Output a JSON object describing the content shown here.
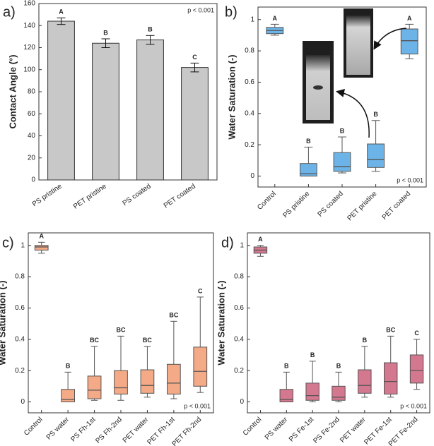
{
  "chart_data": [
    {
      "type": "bar",
      "panel_label": "a)",
      "y_label": "Contact Angle (°)",
      "annotation": "p < 0.001",
      "categories": [
        "PS pristine",
        "PET pristine",
        "PS coated",
        "PET coated"
      ],
      "values": [
        144,
        124,
        127,
        102
      ],
      "errors": [
        3,
        4,
        4,
        4
      ],
      "letters": [
        "A",
        "B",
        "B",
        "C"
      ],
      "color": "#c8c8c8",
      "ylim": [
        0,
        160
      ],
      "yticks": [
        0,
        20,
        40,
        60,
        80,
        100,
        120,
        140,
        160
      ]
    },
    {
      "type": "box",
      "panel_label": "b)",
      "y_label": "Water Saturation (-)",
      "annotation": "p < 0.001",
      "categories": [
        "Control",
        "PS pristine",
        "PS coated",
        "PET pristine",
        "PET coated"
      ],
      "min": [
        0.9,
        0.0,
        0.02,
        0.03,
        0.75
      ],
      "q1": [
        0.91,
        0.0,
        0.03,
        0.055,
        0.78
      ],
      "median": [
        0.93,
        0.015,
        0.06,
        0.105,
        0.865
      ],
      "q3": [
        0.95,
        0.08,
        0.15,
        0.205,
        0.94
      ],
      "max": [
        0.97,
        0.185,
        0.25,
        0.355,
        0.97
      ],
      "letters": [
        "A",
        "B",
        "B",
        "B",
        "A"
      ],
      "color": "#6cb4e8",
      "ylim": [
        -0.07,
        1.08
      ],
      "yticks": [
        0,
        0.2,
        0.4,
        0.6,
        0.8,
        1
      ]
    },
    {
      "type": "box",
      "panel_label": "c)",
      "y_label": "Water Saturation (-)",
      "annotation": "p < 0.001",
      "categories": [
        "Control",
        "PS water",
        "PS Fh-1st",
        "PS Fh-2nd",
        "PET water",
        "PET Fh-1st",
        "PET Fh-2nd"
      ],
      "min": [
        0.95,
        0.0,
        0.01,
        0.01,
        0.03,
        0.02,
        0.06
      ],
      "q1": [
        0.97,
        0.0,
        0.02,
        0.05,
        0.055,
        0.05,
        0.1
      ],
      "median": [
        0.99,
        0.015,
        0.075,
        0.09,
        0.105,
        0.12,
        0.195
      ],
      "q3": [
        1.0,
        0.08,
        0.165,
        0.2,
        0.205,
        0.24,
        0.35
      ],
      "max": [
        1.02,
        0.19,
        0.355,
        0.42,
        0.355,
        0.515,
        0.67
      ],
      "letters": [
        "A",
        "B",
        "BC",
        "BC",
        "BC",
        "BC",
        "C"
      ],
      "color": "#f4aa86",
      "ylim": [
        -0.07,
        1.08
      ],
      "yticks": [
        0,
        0.2,
        0.4,
        0.6,
        0.8,
        1
      ]
    },
    {
      "type": "box",
      "panel_label": "d)",
      "y_label": "Water Saturation (-)",
      "annotation": "p < 0.001",
      "categories": [
        "Control",
        "PS water",
        "PS Fe-1st",
        "PS Fe-2nd",
        "PET water",
        "PET Fe-1st",
        "PET Fe-2nd"
      ],
      "min": [
        0.93,
        0.0,
        0.0,
        0.0,
        0.03,
        0.03,
        0.08
      ],
      "q1": [
        0.95,
        0.0,
        0.01,
        0.01,
        0.055,
        0.05,
        0.12
      ],
      "median": [
        0.97,
        0.015,
        0.04,
        0.03,
        0.105,
        0.13,
        0.2
      ],
      "q3": [
        0.99,
        0.08,
        0.12,
        0.1,
        0.205,
        0.25,
        0.3
      ],
      "max": [
        1.0,
        0.19,
        0.26,
        0.19,
        0.355,
        0.42,
        0.4
      ],
      "letters": [
        "A",
        "B",
        "B",
        "B",
        "B",
        "BC",
        "C"
      ],
      "color": "#d4788f",
      "ylim": [
        -0.07,
        1.08
      ],
      "yticks": [
        0,
        0.2,
        0.4,
        0.6,
        0.8,
        1
      ]
    }
  ]
}
